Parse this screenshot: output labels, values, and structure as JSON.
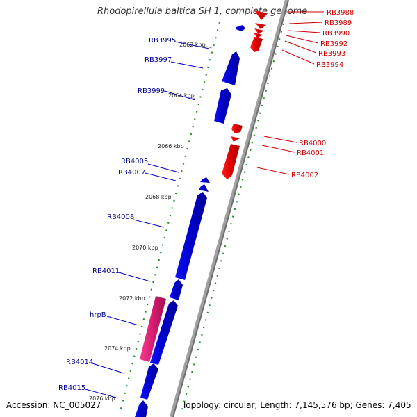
{
  "title": "Rhodopirellula baltica SH 1, complete genome",
  "footer": {
    "accession": "Accession: NC_005027",
    "summary": "Topology: circular; Length: 7,145,576 bp; Genes: 7,405"
  },
  "colors": {
    "forward_gene": "#0000ee",
    "reverse_gene": "#ee0000",
    "highlight_gene": "#e0207a",
    "backbone": "#9a9a9a",
    "tick": "#228b22",
    "forward_label": "#00008b",
    "reverse_label": "#cc0000"
  },
  "positions": [
    "2062 kbp",
    "2064 kbp",
    "2066 kbp",
    "2068 kbp",
    "2070 kbp",
    "2072 kbp",
    "2074 kbp",
    "2076 kbp"
  ],
  "forward_labels": [
    "RB3995",
    "RB3997",
    "RB3999",
    "RB4005",
    "RB4007",
    "RB4008",
    "RB4011",
    "hrpB",
    "RB4014",
    "RB4015"
  ],
  "reverse_labels": [
    "RB3988",
    "RB3989",
    "RB3990",
    "RB3992",
    "RB3993",
    "RB3994",
    "RB4000",
    "RB4001",
    "RB4002"
  ]
}
